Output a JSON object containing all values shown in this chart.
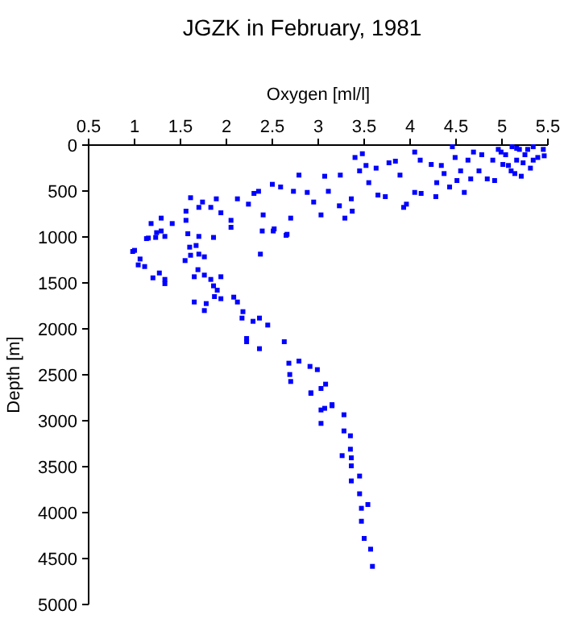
{
  "chart_data": {
    "type": "scatter",
    "title": "JGZK in February, 1981",
    "xlabel": "Oxygen [ml/l]",
    "ylabel": "Depth [m]",
    "marker": "square",
    "grid": false,
    "xlim": [
      0.5,
      5.5
    ],
    "xticks": [
      0.5,
      1,
      1.5,
      2,
      2.5,
      3,
      3.5,
      4,
      4.5,
      5,
      5.5
    ],
    "ylim": [
      5000,
      0
    ],
    "yticks": [
      0,
      500,
      1000,
      1500,
      2000,
      2500,
      3000,
      3500,
      4000,
      4500,
      5000
    ],
    "series": [
      {
        "color": "#0000ff",
        "x": [
          0.98,
          1.06,
          1.04,
          1.11,
          1.2,
          1.27,
          1.33,
          1.33,
          1.55,
          1.61,
          1.7,
          1.76,
          1.67,
          1.69,
          1.65,
          1.76,
          1.83,
          1.94,
          1.86,
          1.9,
          1.87,
          1.94,
          2.08,
          2.12,
          1.65,
          1.78,
          1.76,
          2.18,
          2.17,
          2.29,
          2.36,
          2.45,
          2.22,
          2.22,
          2.36,
          2.63,
          2.68,
          2.79,
          2.91,
          2.99,
          2.69,
          2.7,
          3.08,
          3.03,
          2.92,
          3.15,
          3.07,
          3.28,
          2.92,
          3.03,
          3.15,
          3.03,
          3.28,
          3.35,
          3.35,
          3.26,
          3.36,
          3.36,
          3.45,
          3.36,
          3.45,
          3.54,
          3.47,
          3.47,
          3.5,
          3.57,
          3.59,
          1.13,
          1.23,
          1.29,
          1.58,
          1.7,
          1.86,
          2.05,
          2.37,
          2.39,
          2.51,
          2.65,
          1.6,
          1.0,
          1.18,
          1.29,
          1.33,
          1.15,
          1.24,
          1.41,
          1.56,
          1.56,
          1.61,
          1.7,
          1.74,
          1.83,
          1.89,
          1.94,
          2.05,
          2.12,
          2.24,
          2.3,
          2.35,
          2.5,
          2.59,
          2.73,
          2.79,
          2.88,
          2.95,
          3.03,
          2.4,
          2.52,
          2.66,
          2.7,
          3.07,
          3.11,
          3.23,
          3.24,
          3.29,
          3.36,
          3.37,
          3.4,
          3.45,
          3.48,
          3.52,
          3.55,
          3.63,
          3.65,
          3.73,
          3.77,
          3.84,
          3.89,
          3.93,
          3.96,
          4.05,
          4.05,
          4.11,
          4.12,
          4.23,
          4.28,
          4.29,
          4.34,
          4.37,
          4.43,
          4.46,
          4.49,
          4.51,
          4.55,
          4.59,
          4.63,
          4.66,
          4.69,
          4.75,
          4.78,
          4.84,
          4.9,
          4.92,
          4.96,
          5.01,
          5.04,
          5.1,
          5.11,
          5.16,
          5.19,
          5.25,
          5.31,
          5.34,
          5.39,
          5.45,
          5.46,
          5.07,
          5.23,
          5.14,
          4.99,
          5.16,
          5.28,
          5.34,
          5.21
        ],
        "values": [
          1158,
          1240,
          1304,
          1322,
          1445,
          1392,
          1462,
          1508,
          1257,
          1199,
          1187,
          1216,
          1093,
          1356,
          1433,
          1415,
          1462,
          1433,
          1532,
          1579,
          1649,
          1672,
          1655,
          1708,
          1708,
          1725,
          1801,
          1813,
          1883,
          1918,
          1883,
          1959,
          2105,
          2140,
          2216,
          2140,
          2374,
          2351,
          2409,
          2444,
          2497,
          2573,
          2602,
          2649,
          2696,
          2825,
          2865,
          2935,
          2702,
          2883,
          2837,
          3029,
          3111,
          3164,
          3310,
          3380,
          3404,
          3491,
          3602,
          3655,
          3795,
          3912,
          3953,
          4094,
          4281,
          4398,
          4585,
          1018,
          1005,
          935,
          965,
          994,
          1005,
          895,
          1187,
          935,
          935,
          982,
          1111,
          1146,
          854,
          795,
          994,
          1012,
          953,
          854,
          719,
          819,
          573,
          678,
          620,
          678,
          585,
          737,
          819,
          585,
          643,
          526,
          503,
          427,
          456,
          503,
          327,
          515,
          620,
          760,
          760,
          912,
          971,
          795,
          339,
          503,
          661,
          327,
          795,
          585,
          719,
          135,
          281,
          94,
          222,
          409,
          251,
          544,
          561,
          193,
          175,
          327,
          678,
          643,
          515,
          76,
          164,
          526,
          211,
          561,
          409,
          222,
          310,
          456,
          18,
          135,
          386,
          281,
          515,
          164,
          368,
          76,
          281,
          105,
          368,
          164,
          386,
          47,
          211,
          105,
          281,
          18,
          164,
          47,
          105,
          251,
          18,
          135,
          47,
          117,
          222,
          193,
          310,
          76,
          35,
          47,
          164,
          339
        ]
      }
    ]
  }
}
